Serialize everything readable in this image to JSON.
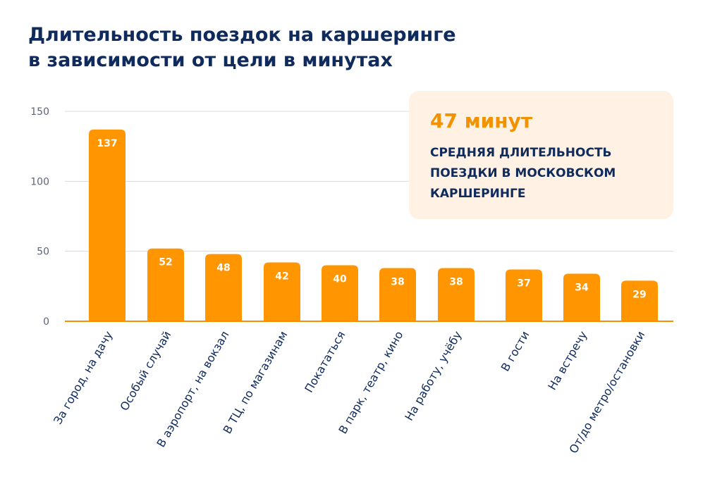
{
  "title_lines": [
    "Длительность поездок на каршеринге",
    "в зависимости от цели в минутах"
  ],
  "callout": {
    "value": "47 минут",
    "text_lines": [
      "СРЕДНЯЯ ДЛИТЕЛЬНОСТЬ",
      "ПОЕЗДКИ В МОСКОВСКОМ",
      "КАРШЕРИНГЕ"
    ]
  },
  "colors": {
    "bar": "#ff9500",
    "title": "#0f2a5c",
    "grid": "#d4d8e0",
    "axis": "#f39200",
    "callout_bg": "#fff1e4"
  },
  "chart_data": {
    "type": "bar",
    "categories": [
      "За город, на дачу",
      "Особый случай",
      "В аэропорт, на вокзал",
      "В ТЦ, по магазинам",
      "Покататься",
      "В парк, театр, кино",
      "На работу, учёбу",
      "В гости",
      "На встречу",
      "От/до метро/остановки"
    ],
    "values": [
      137,
      52,
      48,
      42,
      40,
      38,
      38,
      37,
      34,
      29
    ],
    "ylim": [
      0,
      150
    ],
    "yticks": [
      0,
      50,
      100,
      150
    ],
    "grid": true,
    "data_labels": true
  }
}
